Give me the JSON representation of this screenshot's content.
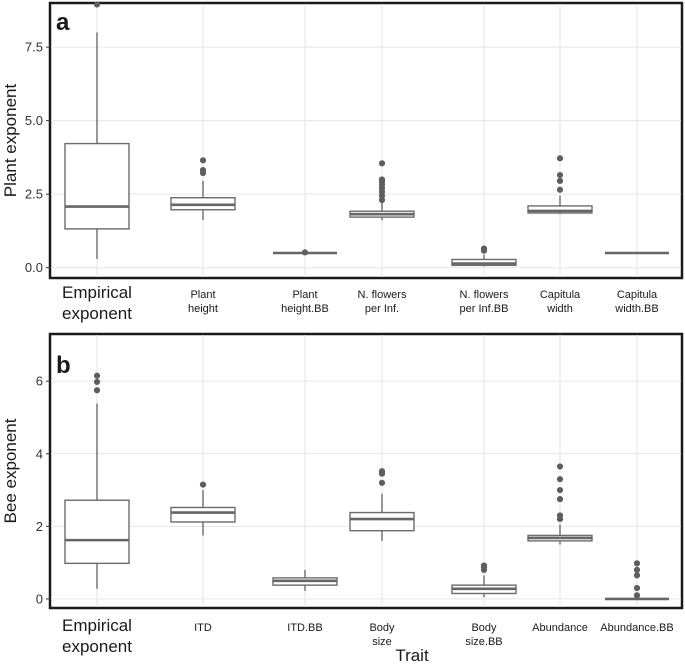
{
  "chart_data": [
    {
      "type": "box",
      "panel_label": "a",
      "ylabel": "Plant exponent",
      "xlabel": "",
      "ylim": [
        -0.35,
        9.0
      ],
      "yticks": [
        "0.0",
        "2.5",
        "5.0",
        "7.5"
      ],
      "ytick_values": [
        0,
        2.5,
        5,
        7.5
      ],
      "categories": [
        {
          "label": [
            "Empirical",
            "exponent"
          ],
          "big": true
        },
        {
          "label": [
            "Plant",
            "height"
          ]
        },
        {
          "label": [
            "Plant",
            "height.BB"
          ]
        },
        {
          "label": [
            "N. flowers",
            "per Inf."
          ]
        },
        {
          "label": [
            "N. flowers",
            "per Inf.BB"
          ]
        },
        {
          "label": [
            "Capitula",
            "width"
          ]
        },
        {
          "label": [
            "Capitula",
            "width.BB"
          ]
        }
      ],
      "boxes": [
        {
          "whislo": 0.3,
          "q1": 1.32,
          "med": 2.08,
          "q3": 4.22,
          "whishi": 8.0,
          "outliers": [
            8.95
          ]
        },
        {
          "whislo": 1.62,
          "q1": 1.97,
          "med": 2.14,
          "q3": 2.38,
          "whishi": 2.95,
          "outliers": [
            3.22,
            3.32,
            3.65
          ]
        },
        {
          "whislo": 0.5,
          "q1": 0.5,
          "med": 0.5,
          "q3": 0.5,
          "whishi": 0.5,
          "outliers": [
            0.52
          ]
        },
        {
          "whislo": 1.62,
          "q1": 1.72,
          "med": 1.82,
          "q3": 1.92,
          "whishi": 2.2,
          "outliers": [
            2.3,
            2.45,
            2.58,
            2.7,
            2.82,
            2.92,
            3.0,
            3.55
          ]
        },
        {
          "whislo": 0.05,
          "q1": 0.08,
          "med": 0.14,
          "q3": 0.28,
          "whishi": 0.45,
          "outliers": [
            0.58,
            0.65
          ]
        },
        {
          "whislo": 1.82,
          "q1": 1.86,
          "med": 1.93,
          "q3": 2.1,
          "whishi": 2.45,
          "outliers": [
            2.65,
            2.95,
            3.15,
            3.72
          ]
        },
        {
          "whislo": 0.5,
          "q1": 0.5,
          "med": 0.5,
          "q3": 0.5,
          "whishi": 0.5,
          "outliers": []
        }
      ]
    },
    {
      "type": "box",
      "panel_label": "b",
      "ylabel": "Bee exponent",
      "xlabel": "Trait",
      "ylim": [
        -0.25,
        7.3
      ],
      "yticks": [
        "0",
        "2",
        "4",
        "6"
      ],
      "ytick_values": [
        0,
        2,
        4,
        6
      ],
      "categories": [
        {
          "label": [
            "Empirical",
            "exponent"
          ],
          "big": true
        },
        {
          "label": [
            "ITD"
          ]
        },
        {
          "label": [
            "ITD.BB"
          ]
        },
        {
          "label": [
            "Body",
            "size"
          ]
        },
        {
          "label": [
            "Body",
            "size.BB"
          ]
        },
        {
          "label": [
            "Abundance"
          ]
        },
        {
          "label": [
            "Abundance.BB"
          ]
        }
      ],
      "boxes": [
        {
          "whislo": 0.28,
          "q1": 0.98,
          "med": 1.62,
          "q3": 2.72,
          "whishi": 5.38,
          "outliers": [
            5.75,
            5.98,
            6.15
          ]
        },
        {
          "whislo": 1.75,
          "q1": 2.12,
          "med": 2.38,
          "q3": 2.52,
          "whishi": 3.0,
          "outliers": [
            3.15
          ]
        },
        {
          "whislo": 0.22,
          "q1": 0.38,
          "med": 0.5,
          "q3": 0.58,
          "whishi": 0.8,
          "outliers": []
        },
        {
          "whislo": 1.6,
          "q1": 1.88,
          "med": 2.2,
          "q3": 2.38,
          "whishi": 2.9,
          "outliers": [
            3.2,
            3.45,
            3.52
          ]
        },
        {
          "whislo": 0.05,
          "q1": 0.15,
          "med": 0.28,
          "q3": 0.38,
          "whishi": 0.65,
          "outliers": [
            0.8,
            0.88,
            0.92
          ]
        },
        {
          "whislo": 1.5,
          "q1": 1.6,
          "med": 1.68,
          "q3": 1.75,
          "whishi": 2.05,
          "outliers": [
            2.2,
            2.3,
            2.75,
            3.0,
            3.3,
            3.65
          ]
        },
        {
          "whislo": 0.0,
          "q1": 0.0,
          "med": 0.0,
          "q3": 0.0,
          "whishi": 0.0,
          "outliers": [
            0.1,
            0.3,
            0.65,
            0.8,
            0.98
          ]
        }
      ]
    }
  ]
}
